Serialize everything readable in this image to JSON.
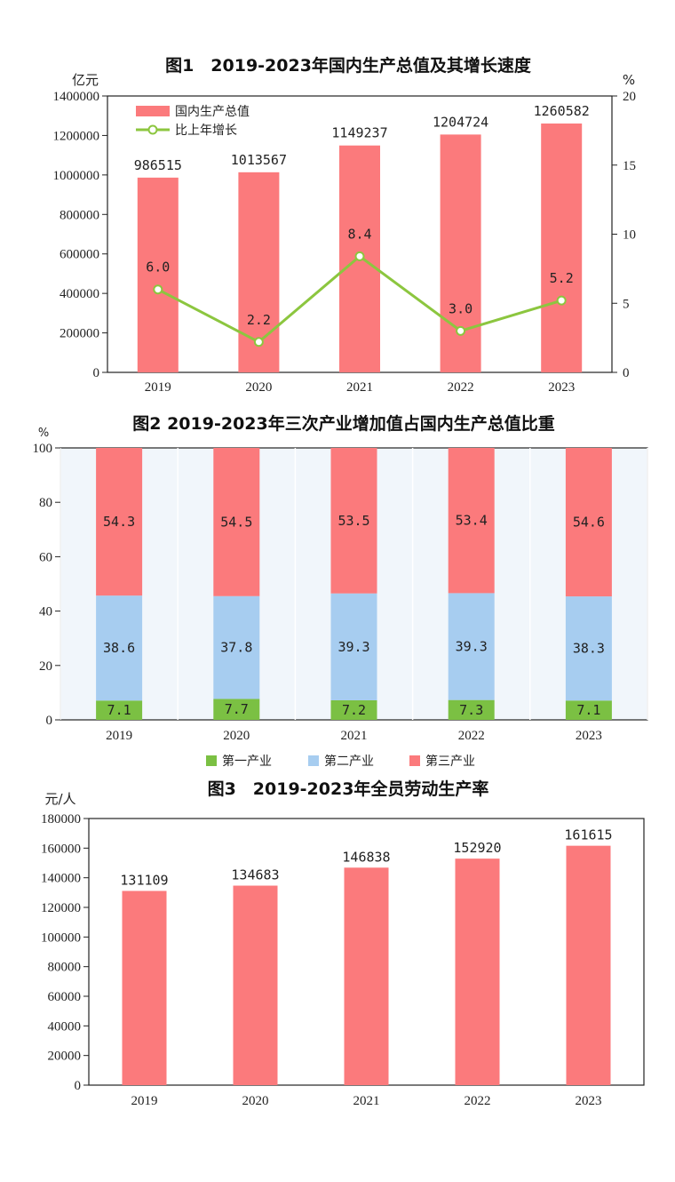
{
  "colors": {
    "bar": "#fb7a7c",
    "line": "#8cc63f",
    "primary": "#7bc043",
    "secondary": "#a7cdf0",
    "tertiary": "#fb7a7c",
    "plot_bg": "#f1f6fb",
    "grid": "#ffffff",
    "axis": "#222222"
  },
  "chart_data": [
    {
      "id": "fig1",
      "type": "bar",
      "title": "图1　2019-2023年国内生产总值及其增长速度",
      "y_unit": "亿元",
      "y2_unit": "%",
      "categories": [
        "2019",
        "2020",
        "2021",
        "2022",
        "2023"
      ],
      "ylim": [
        0,
        1400000
      ],
      "yticks": [
        0,
        200000,
        400000,
        600000,
        800000,
        1000000,
        1200000,
        1400000
      ],
      "y2lim": [
        0,
        20
      ],
      "y2ticks": [
        0,
        5,
        10,
        15,
        20
      ],
      "series": [
        {
          "name": "国内生产总值",
          "type": "bar",
          "axis": "left",
          "values": [
            986515,
            1013567,
            1149237,
            1204724,
            1260582
          ],
          "labels": [
            "986515",
            "1013567",
            "1149237",
            "1204724",
            "1260582"
          ]
        },
        {
          "name": "比上年增长",
          "type": "line",
          "axis": "right",
          "values": [
            6.0,
            2.2,
            8.4,
            3.0,
            5.2
          ],
          "labels": [
            "6.0",
            "2.2",
            "8.4",
            "3.0",
            "5.2"
          ]
        }
      ],
      "legend": "top-left",
      "grid": false
    },
    {
      "id": "fig2",
      "type": "bar",
      "stacked": true,
      "title": "图2 2019-2023年三次产业增加值占国内生产总值比重",
      "y_unit": "%",
      "categories": [
        "2019",
        "2020",
        "2021",
        "2022",
        "2023"
      ],
      "ylim": [
        0,
        100
      ],
      "yticks": [
        0,
        20,
        40,
        60,
        80,
        100
      ],
      "series": [
        {
          "name": "第一产业",
          "values": [
            7.1,
            7.7,
            7.2,
            7.3,
            7.1
          ],
          "labels": [
            "7.1",
            "7.7",
            "7.2",
            "7.3",
            "7.1"
          ]
        },
        {
          "name": "第二产业",
          "values": [
            38.6,
            37.8,
            39.3,
            39.3,
            38.3
          ],
          "labels": [
            "38.6",
            "37.8",
            "39.3",
            "39.3",
            "38.3"
          ]
        },
        {
          "name": "第三产业",
          "values": [
            54.3,
            54.5,
            53.5,
            53.4,
            54.6
          ],
          "labels": [
            "54.3",
            "54.5",
            "53.5",
            "53.4",
            "54.6"
          ]
        }
      ],
      "legend": "bottom",
      "grid": true
    },
    {
      "id": "fig3",
      "type": "bar",
      "title": "图3　2019-2023年全员劳动生产率",
      "y_unit": "元/人",
      "categories": [
        "2019",
        "2020",
        "2021",
        "2022",
        "2023"
      ],
      "ylim": [
        0,
        180000
      ],
      "yticks": [
        0,
        20000,
        40000,
        60000,
        80000,
        100000,
        120000,
        140000,
        160000,
        180000
      ],
      "series": [
        {
          "name": "全员劳动生产率",
          "values": [
            131109,
            134683,
            146838,
            152920,
            161615
          ],
          "labels": [
            "131109",
            "134683",
            "146838",
            "152920",
            "161615"
          ]
        }
      ],
      "legend": "none",
      "grid": false
    }
  ]
}
